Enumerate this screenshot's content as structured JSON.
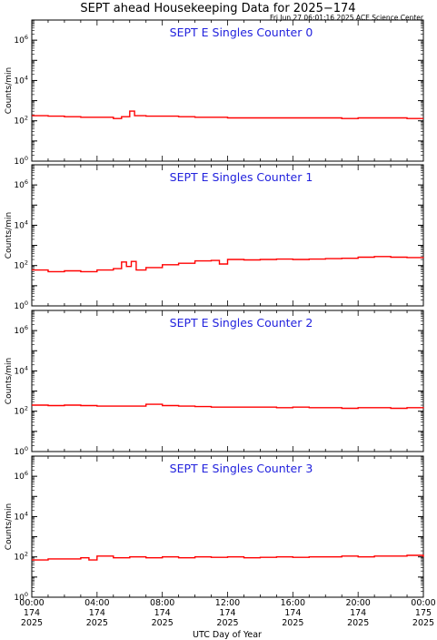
{
  "figure": {
    "title": "SEPT ahead Housekeeping Data for 2025−174",
    "timestamp": "Fri Jun 27 06:01:16 2025 ACE Science Center",
    "xlabel": "UTC Day of Year",
    "ylabel": "Counts/min",
    "line_color": "#ff0000",
    "title_color": "#2222dd"
  },
  "chart_data": [
    {
      "type": "line",
      "title": "SEPT E Singles Counter 0",
      "yscale": "log",
      "ylim": [
        1,
        10000000
      ],
      "xlim": [
        0,
        24
      ],
      "y_ticks": [
        {
          "base": "10",
          "exp": "0"
        },
        {
          "base": "10",
          "exp": "2"
        },
        {
          "base": "10",
          "exp": "4"
        },
        {
          "base": "10",
          "exp": "6"
        }
      ],
      "series": [
        {
          "x": [
            0,
            1,
            2,
            3,
            4,
            5,
            5.5,
            6,
            6.3,
            7,
            8,
            9,
            10,
            11,
            12,
            13,
            14,
            15,
            16,
            17,
            18,
            19,
            20,
            21,
            22,
            23,
            24
          ],
          "values": [
            180,
            170,
            160,
            150,
            150,
            130,
            160,
            300,
            180,
            170,
            170,
            160,
            150,
            150,
            140,
            140,
            140,
            140,
            140,
            140,
            140,
            130,
            140,
            140,
            140,
            130,
            130
          ]
        }
      ]
    },
    {
      "type": "line",
      "title": "SEPT E Singles Counter 1",
      "yscale": "log",
      "ylim": [
        1,
        10000000
      ],
      "xlim": [
        0,
        24
      ],
      "y_ticks": [
        {
          "base": "10",
          "exp": "0"
        },
        {
          "base": "10",
          "exp": "2"
        },
        {
          "base": "10",
          "exp": "4"
        },
        {
          "base": "10",
          "exp": "6"
        }
      ],
      "series": [
        {
          "x": [
            0,
            1,
            2,
            3,
            4,
            5,
            5.5,
            5.8,
            6.1,
            6.4,
            7,
            8,
            9,
            10,
            11,
            11.5,
            12,
            13,
            14,
            15,
            16,
            17,
            18,
            19,
            20,
            21,
            22,
            23,
            24
          ],
          "values": [
            60,
            50,
            55,
            50,
            60,
            70,
            150,
            90,
            160,
            60,
            80,
            110,
            130,
            170,
            180,
            120,
            200,
            190,
            200,
            210,
            200,
            210,
            220,
            230,
            260,
            280,
            260,
            250,
            240
          ]
        }
      ]
    },
    {
      "type": "line",
      "title": "SEPT E Singles Counter 2",
      "yscale": "log",
      "ylim": [
        1,
        10000000
      ],
      "xlim": [
        0,
        24
      ],
      "y_ticks": [
        {
          "base": "10",
          "exp": "0"
        },
        {
          "base": "10",
          "exp": "2"
        },
        {
          "base": "10",
          "exp": "4"
        },
        {
          "base": "10",
          "exp": "6"
        }
      ],
      "series": [
        {
          "x": [
            0,
            1,
            2,
            3,
            4,
            5,
            6,
            7,
            8,
            9,
            10,
            11,
            12,
            13,
            14,
            15,
            16,
            17,
            18,
            19,
            20,
            21,
            22,
            23,
            24
          ],
          "values": [
            200,
            190,
            200,
            190,
            180,
            180,
            180,
            220,
            190,
            180,
            170,
            160,
            160,
            160,
            160,
            150,
            160,
            150,
            150,
            140,
            150,
            150,
            140,
            150,
            140
          ]
        }
      ]
    },
    {
      "type": "line",
      "title": "SEPT E Singles Counter 3",
      "yscale": "log",
      "ylim": [
        1,
        10000000
      ],
      "xlim": [
        0,
        24
      ],
      "y_ticks": [
        {
          "base": "10",
          "exp": "0"
        },
        {
          "base": "10",
          "exp": "2"
        },
        {
          "base": "10",
          "exp": "4"
        },
        {
          "base": "10",
          "exp": "6"
        }
      ],
      "series": [
        {
          "x": [
            0,
            1,
            2,
            3,
            3.5,
            4,
            5,
            6,
            7,
            8,
            9,
            10,
            11,
            12,
            13,
            14,
            15,
            16,
            17,
            18,
            19,
            20,
            21,
            22,
            23,
            24
          ],
          "values": [
            70,
            80,
            80,
            90,
            70,
            110,
            90,
            100,
            90,
            100,
            90,
            100,
            95,
            100,
            90,
            95,
            100,
            95,
            100,
            100,
            110,
            100,
            110,
            110,
            120,
            100
          ]
        }
      ]
    }
  ],
  "x_axis": {
    "ticks": [
      {
        "x": 0,
        "time": "00:00",
        "doy": "174",
        "year": "2025"
      },
      {
        "x": 4,
        "time": "04:00",
        "doy": "174",
        "year": "2025"
      },
      {
        "x": 8,
        "time": "08:00",
        "doy": "174",
        "year": "2025"
      },
      {
        "x": 12,
        "time": "12:00",
        "doy": "174",
        "year": "2025"
      },
      {
        "x": 16,
        "time": "16:00",
        "doy": "174",
        "year": "2025"
      },
      {
        "x": 20,
        "time": "20:00",
        "doy": "174",
        "year": "2025"
      },
      {
        "x": 24,
        "time": "00:00",
        "doy": "175",
        "year": "2025"
      }
    ]
  }
}
